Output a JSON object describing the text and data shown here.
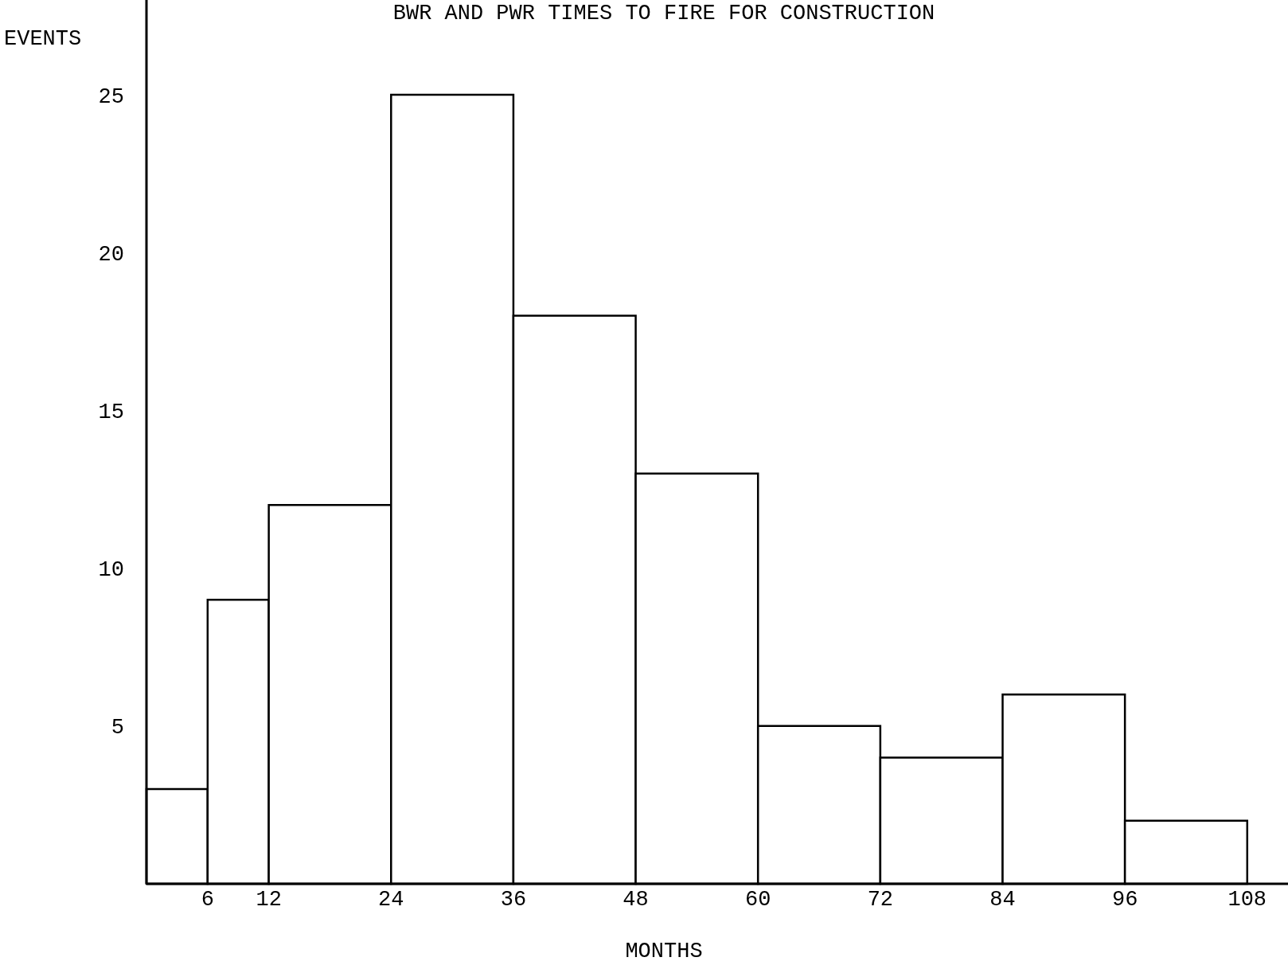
{
  "chart_data": {
    "type": "histogram",
    "title": "BWR AND PWR TIMES TO FIRE FOR CONSTRUCTION",
    "xlabel": "MONTHS",
    "ylabel": "EVENTS",
    "bins": [
      0,
      6,
      12,
      24,
      36,
      48,
      60,
      72,
      84,
      96,
      108
    ],
    "values": [
      3,
      9,
      12,
      25,
      18,
      13,
      5,
      4,
      6,
      2
    ],
    "color": "#ffffff",
    "xlim": [
      0,
      112
    ],
    "xticks": [
      6,
      12,
      24,
      36,
      48,
      60,
      72,
      84,
      96,
      108
    ],
    "ylim": [
      0,
      28
    ],
    "yticks": [
      5,
      10,
      15,
      20,
      25
    ],
    "grid": false
  }
}
